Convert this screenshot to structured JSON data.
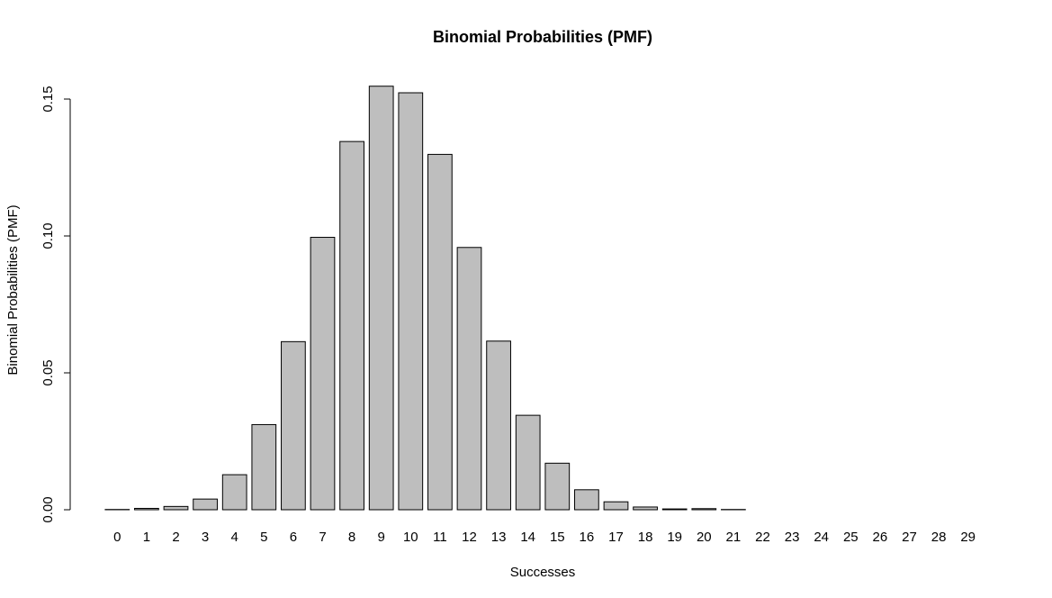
{
  "chart_data": {
    "type": "bar",
    "title": "Binomial Probabilities (PMF)",
    "xlabel": "Successes",
    "ylabel": "Binomial Probabilities (PMF)",
    "ylim": [
      0,
      0.155
    ],
    "yticks": [
      "0.00",
      "0.05",
      "0.10",
      "0.15"
    ],
    "bar_color": "#bebebe",
    "border_color": "#000000",
    "grid": false,
    "categories": [
      "0",
      "1",
      "2",
      "3",
      "4",
      "5",
      "6",
      "7",
      "8",
      "9",
      "10",
      "11",
      "12",
      "13",
      "14",
      "15",
      "16",
      "17",
      "18",
      "19",
      "20",
      "21",
      "22",
      "23",
      "24",
      "25",
      "26",
      "27",
      "28",
      "29"
    ],
    "values": [
      0.0001,
      0.0005,
      0.0012,
      0.0039,
      0.0128,
      0.0311,
      0.0614,
      0.0995,
      0.1345,
      0.1547,
      0.1523,
      0.1298,
      0.0958,
      0.0616,
      0.0345,
      0.017,
      0.0073,
      0.0029,
      0.001,
      0.0003,
      0.0004,
      0.0001,
      0.0,
      0.0,
      0.0,
      0.0,
      0.0,
      0.0,
      0.0,
      0.0
    ]
  }
}
